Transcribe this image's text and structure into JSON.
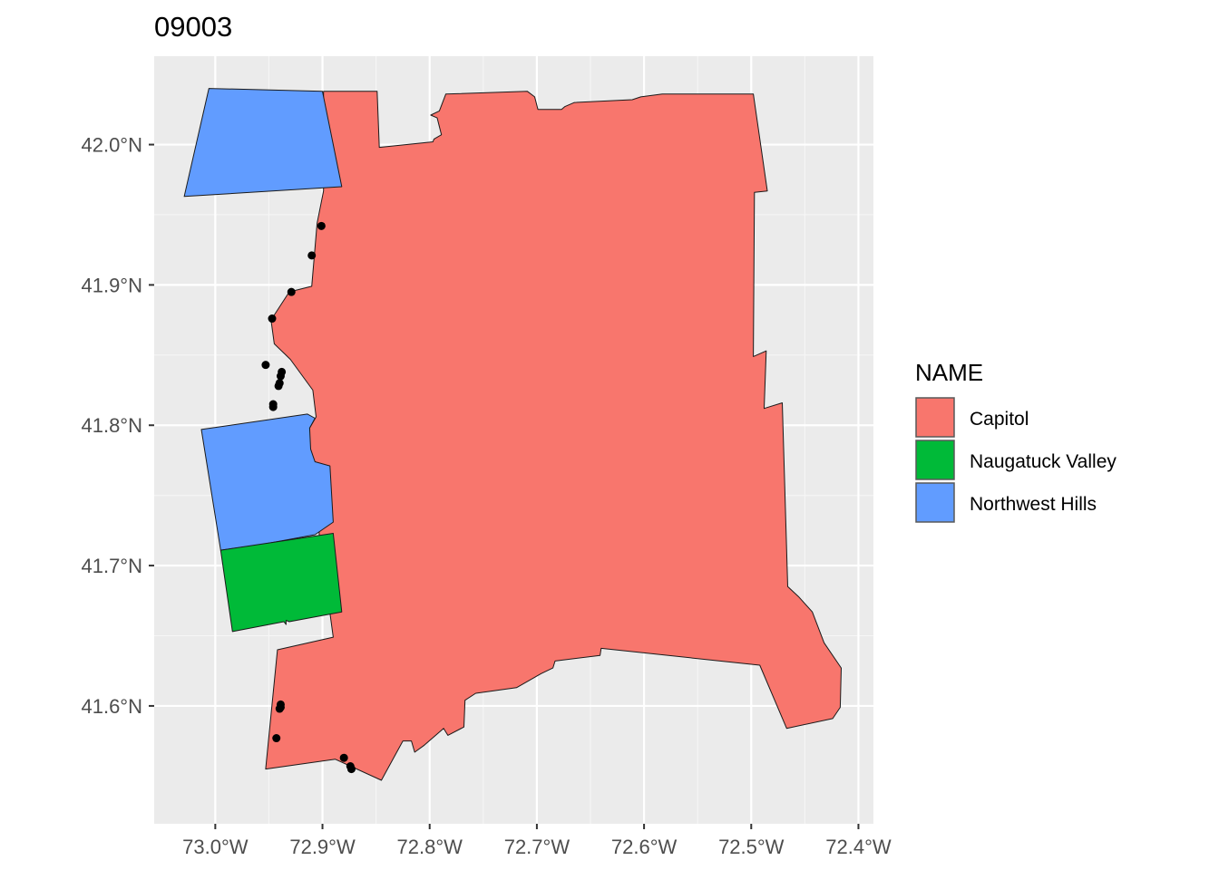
{
  "chart_data": {
    "type": "map",
    "title": "09003",
    "x_ticks": [
      {
        "value": -73.0,
        "label": "73.0°W"
      },
      {
        "value": -72.9,
        "label": "72.9°W"
      },
      {
        "value": -72.8,
        "label": "72.8°W"
      },
      {
        "value": -72.7,
        "label": "72.7°W"
      },
      {
        "value": -72.6,
        "label": "72.6°W"
      },
      {
        "value": -72.5,
        "label": "72.5°W"
      },
      {
        "value": -72.4,
        "label": "72.4°W"
      }
    ],
    "y_ticks": [
      {
        "value": 42.0,
        "label": "42.0°N"
      },
      {
        "value": 41.9,
        "label": "41.9°N"
      },
      {
        "value": 41.8,
        "label": "41.8°N"
      },
      {
        "value": 41.7,
        "label": "41.7°N"
      },
      {
        "value": 41.6,
        "label": "41.6°N"
      }
    ],
    "xlim": [
      -73.057,
      -72.386
    ],
    "ylim": [
      41.516,
      42.063
    ],
    "grid": true,
    "legend": {
      "title": "NAME",
      "position": "right",
      "entries": [
        {
          "label": "Capitol",
          "color": "#F8766D"
        },
        {
          "label": "Naugatuck Valley",
          "color": "#00BA38"
        },
        {
          "label": "Northwest Hills",
          "color": "#619CFF"
        }
      ]
    },
    "regions": [
      {
        "name": "Capitol",
        "color": "#F8766D",
        "coords": [
          [
            -72.899,
            42.038
          ],
          [
            -72.849,
            42.038
          ],
          [
            -72.847,
            41.998
          ],
          [
            -72.797,
            42.002
          ],
          [
            -72.796,
            42.004
          ],
          [
            -72.789,
            42.007
          ],
          [
            -72.793,
            42.019
          ],
          [
            -72.799,
            42.021
          ],
          [
            -72.791,
            42.024
          ],
          [
            -72.785,
            42.036
          ],
          [
            -72.709,
            42.038
          ],
          [
            -72.702,
            42.034
          ],
          [
            -72.699,
            42.025
          ],
          [
            -72.677,
            42.025
          ],
          [
            -72.674,
            42.027
          ],
          [
            -72.665,
            42.03
          ],
          [
            -72.611,
            42.032
          ],
          [
            -72.603,
            42.034
          ],
          [
            -72.583,
            42.036
          ],
          [
            -72.498,
            42.036
          ],
          [
            -72.485,
            41.967
          ],
          [
            -72.497,
            41.966
          ],
          [
            -72.498,
            41.849
          ],
          [
            -72.486,
            41.853
          ],
          [
            -72.488,
            41.812
          ],
          [
            -72.471,
            41.816
          ],
          [
            -72.466,
            41.685
          ],
          [
            -72.456,
            41.678
          ],
          [
            -72.443,
            41.667
          ],
          [
            -72.432,
            41.645
          ],
          [
            -72.416,
            41.627
          ],
          [
            -72.417,
            41.599
          ],
          [
            -72.424,
            41.591
          ],
          [
            -72.467,
            41.584
          ],
          [
            -72.492,
            41.629
          ],
          [
            -72.64,
            41.641
          ],
          [
            -72.641,
            41.636
          ],
          [
            -72.683,
            41.632
          ],
          [
            -72.685,
            41.627
          ],
          [
            -72.696,
            41.623
          ],
          [
            -72.719,
            41.613
          ],
          [
            -72.757,
            41.609
          ],
          [
            -72.767,
            41.604
          ],
          [
            -72.768,
            41.585
          ],
          [
            -72.783,
            41.579
          ],
          [
            -72.787,
            41.584
          ],
          [
            -72.805,
            41.572
          ],
          [
            -72.814,
            41.567
          ],
          [
            -72.817,
            41.575
          ],
          [
            -72.825,
            41.575
          ],
          [
            -72.845,
            41.547
          ],
          [
            -72.888,
            41.562
          ],
          [
            -72.953,
            41.555
          ],
          [
            -72.942,
            41.64
          ],
          [
            -72.89,
            41.649
          ],
          [
            -72.903,
            41.722
          ],
          [
            -72.907,
            41.774
          ],
          [
            -72.917,
            41.785
          ],
          [
            -72.912,
            41.798
          ],
          [
            -72.906,
            41.806
          ],
          [
            -72.909,
            41.825
          ],
          [
            -72.93,
            41.847
          ],
          [
            -72.945,
            41.858
          ],
          [
            -72.948,
            41.875
          ],
          [
            -72.931,
            41.895
          ],
          [
            -72.91,
            41.899
          ],
          [
            -72.905,
            41.944
          ],
          [
            -72.899,
            41.967
          ],
          [
            -72.899,
            42.038
          ]
        ]
      },
      {
        "name": "Northwest Hills",
        "color": "#619CFF",
        "coords": [
          [
            -73.006,
            42.04
          ],
          [
            -72.9,
            42.038
          ],
          [
            -72.882,
            41.97
          ],
          [
            -73.029,
            41.963
          ],
          [
            -73.006,
            42.04
          ]
        ]
      },
      {
        "name": "Northwest Hills",
        "color": "#619CFF",
        "coords": [
          [
            -73.013,
            41.797
          ],
          [
            -72.914,
            41.808
          ],
          [
            -72.907,
            41.805
          ],
          [
            -72.912,
            41.798
          ],
          [
            -72.911,
            41.783
          ],
          [
            -72.907,
            41.774
          ],
          [
            -72.893,
            41.771
          ],
          [
            -72.89,
            41.731
          ],
          [
            -72.907,
            41.722
          ],
          [
            -72.957,
            41.715
          ],
          [
            -72.995,
            41.711
          ],
          [
            -73.013,
            41.797
          ]
        ]
      },
      {
        "name": "Naugatuck Valley",
        "color": "#00BA38",
        "coords": [
          [
            -72.995,
            41.711
          ],
          [
            -72.89,
            41.723
          ],
          [
            -72.882,
            41.667
          ],
          [
            -72.931,
            41.66
          ],
          [
            -72.934,
            41.661
          ],
          [
            -72.934,
            41.658
          ],
          [
            -72.936,
            41.66
          ],
          [
            -72.984,
            41.653
          ],
          [
            -72.995,
            41.711
          ]
        ]
      }
    ],
    "points": [
      [
        -72.901,
        41.942
      ],
      [
        -72.91,
        41.921
      ],
      [
        -72.929,
        41.895
      ],
      [
        -72.947,
        41.876
      ],
      [
        -72.953,
        41.843
      ],
      [
        -72.938,
        41.838
      ],
      [
        -72.939,
        41.835
      ],
      [
        -72.94,
        41.83
      ],
      [
        -72.941,
        41.828
      ],
      [
        -72.946,
        41.815
      ],
      [
        -72.946,
        41.813
      ],
      [
        -72.939,
        41.601
      ],
      [
        -72.939,
        41.599
      ],
      [
        -72.94,
        41.598
      ],
      [
        -72.943,
        41.577
      ],
      [
        -72.88,
        41.563
      ],
      [
        -72.874,
        41.557
      ],
      [
        -72.873,
        41.555
      ]
    ]
  }
}
